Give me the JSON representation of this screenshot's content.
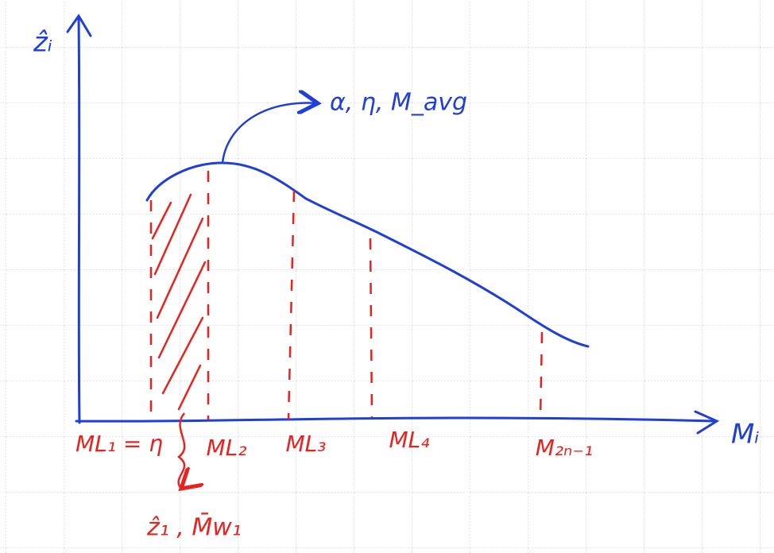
{
  "axes": {
    "y_label": "ẑᵢ",
    "x_label": "Mᵢ"
  },
  "curve": {
    "annotation": "α, η, M_avg"
  },
  "markers": [
    {
      "label": "ML₁ = η"
    },
    {
      "label": "ML₂"
    },
    {
      "label": "ML₃"
    },
    {
      "label": "ML₄"
    },
    {
      "label": "M₂ₙ₋₁"
    }
  ],
  "footnote": "ẑ₁ , M̄w₁"
}
